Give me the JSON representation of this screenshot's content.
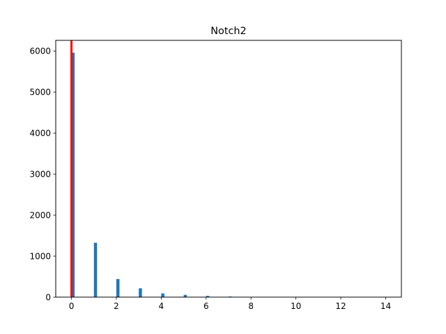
{
  "chart_data": {
    "type": "bar",
    "title": "Notch2",
    "xlabel": "",
    "ylabel": "",
    "xlim": [
      -0.7,
      14.7
    ],
    "ylim": [
      0,
      6260
    ],
    "xticks": [
      0,
      2,
      4,
      6,
      8,
      10,
      12,
      14
    ],
    "xtick_labels": [
      "0",
      "2",
      "4",
      "6",
      "8",
      "10",
      "12",
      "14"
    ],
    "yticks": [
      0,
      1000,
      2000,
      3000,
      4000,
      5000,
      6000
    ],
    "ytick_labels": [
      "0",
      "1000",
      "2000",
      "3000",
      "4000",
      "5000",
      "6000"
    ],
    "grid": false,
    "series": [
      {
        "color": "#1f77b4",
        "bin_width": 0.14,
        "x": [
          0,
          1,
          2,
          3,
          4,
          5,
          6,
          7,
          8,
          9,
          10,
          11,
          12,
          13,
          14
        ],
        "values": [
          5960,
          1325,
          440,
          215,
          90,
          55,
          30,
          15,
          6,
          4,
          3,
          2,
          1,
          1,
          1
        ]
      }
    ],
    "reference_line": {
      "x": 0,
      "color": "#ff0000"
    }
  }
}
